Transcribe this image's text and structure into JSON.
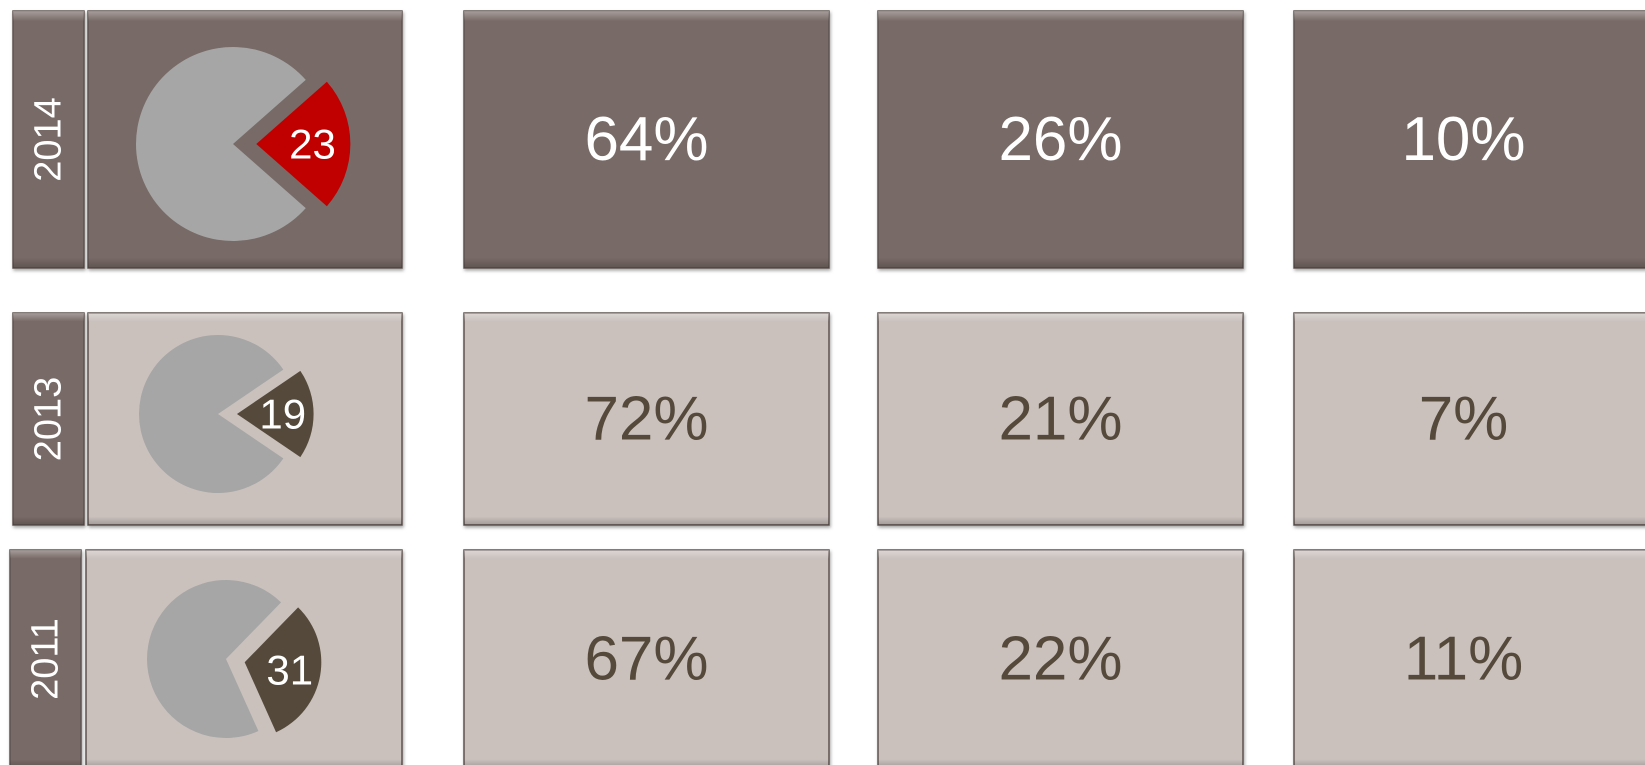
{
  "rows": [
    {
      "year": "2014",
      "pie": 23,
      "cells": [
        "64%",
        "26%",
        "10%"
      ]
    },
    {
      "year": "2013",
      "pie": 19,
      "cells": [
        "72%",
        "21%",
        "7%"
      ]
    },
    {
      "year": "2011",
      "pie": 31,
      "cells": [
        "67%",
        "22%",
        "11%"
      ]
    }
  ]
}
